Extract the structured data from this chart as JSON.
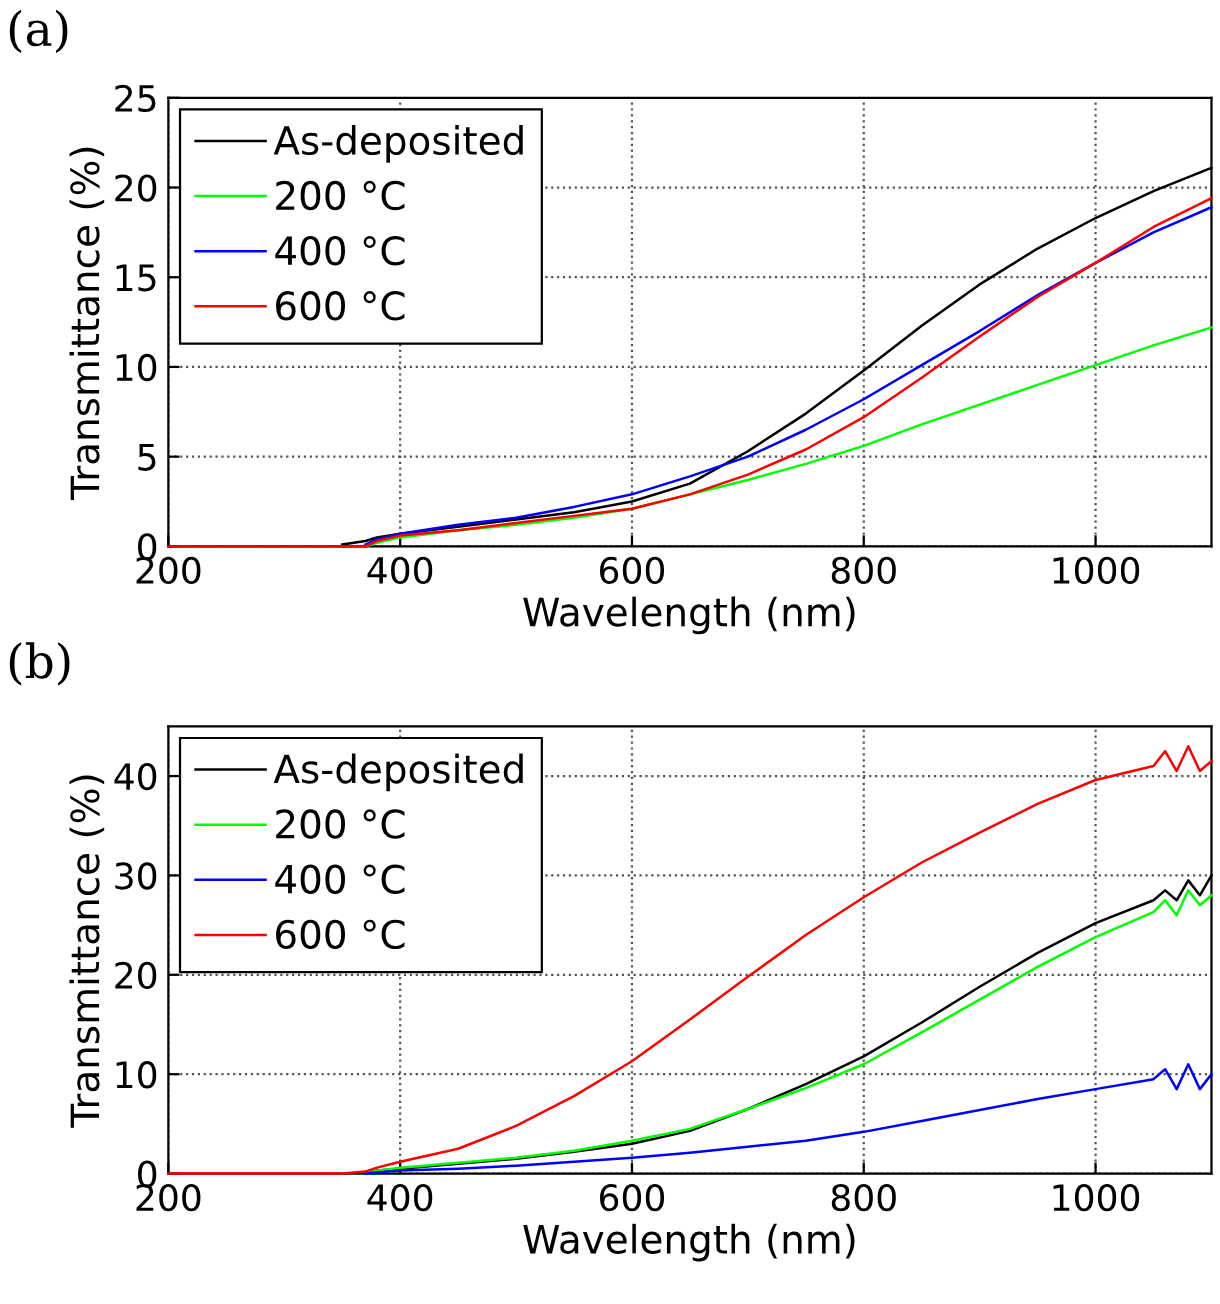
{
  "chart_data": [
    {
      "type": "line",
      "title": "(a)",
      "xlabel": "Wavelength (nm)",
      "ylabel": "Transmittance (%)",
      "x": [
        200,
        250,
        300,
        350,
        370,
        380,
        400,
        450,
        500,
        550,
        600,
        650,
        700,
        750,
        800,
        850,
        900,
        950,
        1000,
        1050,
        1100
      ],
      "series": [
        {
          "name": "As-deposited",
          "color": "#000000",
          "values": [
            null,
            null,
            null,
            0.1,
            0.3,
            0.5,
            0.7,
            1.1,
            1.5,
            1.9,
            2.5,
            3.5,
            5.3,
            7.4,
            9.8,
            12.3,
            14.6,
            16.6,
            18.3,
            19.8,
            21.1
          ]
        },
        {
          "name": "200 °C",
          "color": "#00ff00",
          "values": [
            null,
            null,
            null,
            null,
            0,
            0.2,
            0.5,
            0.9,
            1.2,
            1.6,
            2.1,
            2.9,
            3.7,
            4.6,
            5.6,
            6.8,
            7.9,
            9.0,
            10.1,
            11.2,
            12.2
          ]
        },
        {
          "name": "400 °C",
          "color": "#0000ff",
          "values": [
            null,
            null,
            null,
            null,
            0.1,
            0.4,
            0.7,
            1.2,
            1.6,
            2.2,
            2.9,
            3.9,
            5.0,
            6.5,
            8.2,
            10.1,
            12.0,
            14.0,
            15.8,
            17.5,
            18.9
          ]
        },
        {
          "name": "600 °C",
          "color": "#ff0000",
          "values": [
            0,
            0,
            0,
            0,
            0,
            0.3,
            0.6,
            0.9,
            1.3,
            1.7,
            2.1,
            2.9,
            4.0,
            5.4,
            7.2,
            9.4,
            11.7,
            13.9,
            15.8,
            17.8,
            19.4
          ]
        }
      ],
      "xlim": [
        200,
        1100
      ],
      "xticks": [
        200,
        400,
        600,
        800,
        1000
      ],
      "ylim": [
        0,
        25
      ],
      "yticks": [
        0,
        5,
        10,
        15,
        20,
        25
      ],
      "grid": true,
      "legend": "top left",
      "line_style": "solid",
      "marker": "none"
    },
    {
      "type": "line",
      "title": "(b)",
      "xlabel": "Wavelength (nm)",
      "ylabel": "Transmittance (%)",
      "x": [
        200,
        250,
        300,
        350,
        370,
        380,
        400,
        450,
        500,
        550,
        600,
        650,
        700,
        750,
        800,
        850,
        900,
        950,
        1000,
        1050,
        1060,
        1070,
        1080,
        1090,
        1100
      ],
      "series": [
        {
          "name": "As-deposited",
          "color": "#000000",
          "values": [
            null,
            null,
            null,
            null,
            0.1,
            0.3,
            0.5,
            1.0,
            1.5,
            2.2,
            3.0,
            4.3,
            6.5,
            9.0,
            11.8,
            15.2,
            18.8,
            22.2,
            25.2,
            27.5,
            28.5,
            27.5,
            29.5,
            28,
            30
          ]
        },
        {
          "name": "200 °C",
          "color": "#00ff00",
          "values": [
            null,
            null,
            null,
            null,
            0.1,
            0.3,
            0.6,
            1.1,
            1.6,
            2.3,
            3.3,
            4.5,
            6.5,
            8.6,
            11.0,
            14.2,
            17.5,
            20.8,
            23.8,
            26.3,
            27.5,
            26,
            28.5,
            27,
            28
          ]
        },
        {
          "name": "400 °C",
          "color": "#0000ff",
          "values": [
            null,
            null,
            null,
            null,
            0,
            0.1,
            0.3,
            0.5,
            0.8,
            1.2,
            1.6,
            2.1,
            2.7,
            3.3,
            4.2,
            5.3,
            6.4,
            7.5,
            8.5,
            9.5,
            10.5,
            8.5,
            11,
            8.5,
            10
          ]
        },
        {
          "name": "600 °C",
          "color": "#ff0000",
          "values": [
            0,
            0,
            0,
            0,
            0.2,
            0.6,
            1.2,
            2.5,
            4.8,
            7.8,
            11.3,
            15.5,
            19.8,
            24.0,
            27.8,
            31.3,
            34.3,
            37.2,
            39.6,
            41.0,
            42.5,
            40.5,
            43,
            40.5,
            41.5
          ]
        }
      ],
      "xlim": [
        200,
        1100
      ],
      "xticks": [
        200,
        400,
        600,
        800,
        1000
      ],
      "ylim": [
        0,
        45
      ],
      "yticks": [
        0,
        10,
        20,
        30,
        40
      ],
      "grid": true,
      "legend": "top left",
      "line_style": "solid",
      "marker": "none"
    }
  ]
}
